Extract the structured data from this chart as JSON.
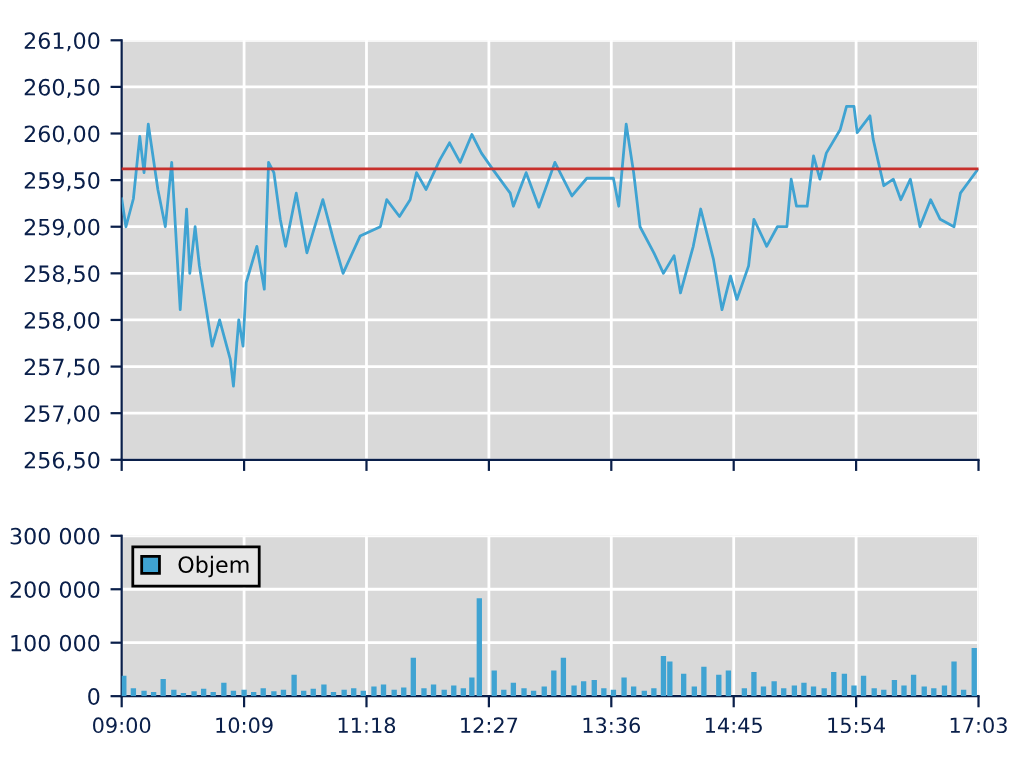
{
  "chart_data": [
    {
      "type": "line",
      "grid": true,
      "tick_labels": "y",
      "xlim": [
        9.0,
        17.05
      ],
      "xticks": [
        {
          "value": 9.0,
          "label": null
        },
        {
          "value": 10.15,
          "label": null
        },
        {
          "value": 11.3,
          "label": null
        },
        {
          "value": 12.45,
          "label": null
        },
        {
          "value": 13.6,
          "label": null
        },
        {
          "value": 14.75,
          "label": null
        },
        {
          "value": 15.9,
          "label": null
        },
        {
          "value": 17.05,
          "label": null
        }
      ],
      "ylim": [
        256.5,
        261.0
      ],
      "yticks": [
        {
          "value": 256.5,
          "label": "256,50"
        },
        {
          "value": 257.0,
          "label": "257,00"
        },
        {
          "value": 257.5,
          "label": "257,50"
        },
        {
          "value": 258.0,
          "label": "258,00"
        },
        {
          "value": 258.5,
          "label": "258,50"
        },
        {
          "value": 259.0,
          "label": "259,00"
        },
        {
          "value": 259.5,
          "label": "259,50"
        },
        {
          "value": 260.0,
          "label": "260,00"
        },
        {
          "value": 260.5,
          "label": "260,50"
        },
        {
          "value": 261.0,
          "label": "261,00"
        }
      ],
      "ref_lines": [
        {
          "axis": "y",
          "value": 259.62,
          "color": "#c8302c"
        }
      ],
      "series": [
        {
          "color": "#3fa3d2",
          "x": [
            9.0,
            9.04,
            9.11,
            9.17,
            9.21,
            9.25,
            9.34,
            9.41,
            9.47,
            9.55,
            9.61,
            9.64,
            9.69,
            9.73,
            9.85,
            9.92,
            10.02,
            10.05,
            10.1,
            10.14,
            10.17,
            10.27,
            10.34,
            10.38,
            10.43,
            10.49,
            10.54,
            10.64,
            10.74,
            10.89,
            10.99,
            11.08,
            11.24,
            11.43,
            11.49,
            11.61,
            11.71,
            11.77,
            11.86,
            11.99,
            12.08,
            12.18,
            12.29,
            12.38,
            12.49,
            12.65,
            12.68,
            12.8,
            12.92,
            13.07,
            13.23,
            13.37,
            13.62,
            13.67,
            13.74,
            13.81,
            13.87,
            14.0,
            14.09,
            14.19,
            14.25,
            14.37,
            14.44,
            14.56,
            14.64,
            14.72,
            14.78,
            14.89,
            14.94,
            15.06,
            15.16,
            15.25,
            15.29,
            15.34,
            15.44,
            15.5,
            15.56,
            15.62,
            15.75,
            15.81,
            15.88,
            15.91,
            16.03,
            16.06,
            16.16,
            16.25,
            16.32,
            16.41,
            16.5,
            16.6,
            16.69,
            16.82,
            16.88,
            17.04
          ],
          "values": [
            259.3,
            259.0,
            259.3,
            259.97,
            259.58,
            260.1,
            259.4,
            259.0,
            259.69,
            258.11,
            259.19,
            258.5,
            259.0,
            258.58,
            257.72,
            258.0,
            257.58,
            257.29,
            258.0,
            257.72,
            258.4,
            258.79,
            258.33,
            259.69,
            259.58,
            259.08,
            258.79,
            259.36,
            258.72,
            259.29,
            258.86,
            258.5,
            258.9,
            259.0,
            259.29,
            259.11,
            259.29,
            259.58,
            259.4,
            259.72,
            259.9,
            259.69,
            259.99,
            259.79,
            259.61,
            259.36,
            259.22,
            259.58,
            259.21,
            259.69,
            259.33,
            259.52,
            259.52,
            259.22,
            260.1,
            259.58,
            259.0,
            258.72,
            258.5,
            258.69,
            258.29,
            258.79,
            259.19,
            258.65,
            258.11,
            258.47,
            258.22,
            258.58,
            259.08,
            258.79,
            259.0,
            259.0,
            259.51,
            259.22,
            259.22,
            259.76,
            259.51,
            259.79,
            260.04,
            260.29,
            260.29,
            260.01,
            260.19,
            259.94,
            259.44,
            259.51,
            259.29,
            259.51,
            259.0,
            259.29,
            259.08,
            259.0,
            259.36,
            259.61
          ]
        }
      ]
    },
    {
      "type": "bar",
      "grid": true,
      "legend": "top left",
      "xlim": [
        9.0,
        17.05
      ],
      "xticks": [
        {
          "value": 9.0,
          "label": "09:00"
        },
        {
          "value": 10.15,
          "label": "10:09"
        },
        {
          "value": 11.3,
          "label": "11:18"
        },
        {
          "value": 12.45,
          "label": "12:27"
        },
        {
          "value": 13.6,
          "label": "13:36"
        },
        {
          "value": 14.75,
          "label": "14:45"
        },
        {
          "value": 15.9,
          "label": "15:54"
        },
        {
          "value": 17.05,
          "label": "17:03"
        }
      ],
      "ylim": [
        0,
        300000
      ],
      "yticks": [
        {
          "value": 0,
          "label": "0"
        },
        {
          "value": 100000,
          "label": "100 000"
        },
        {
          "value": 200000,
          "label": "200 000"
        },
        {
          "value": 300000,
          "label": "300 000"
        }
      ],
      "series": [
        {
          "name": "Objem",
          "color": "#3fa3d2",
          "x": [
            9.02,
            9.11,
            9.21,
            9.3,
            9.39,
            9.49,
            9.58,
            9.68,
            9.77,
            9.86,
            9.96,
            10.05,
            10.15,
            10.24,
            10.33,
            10.43,
            10.52,
            10.62,
            10.71,
            10.8,
            10.9,
            10.99,
            11.09,
            11.18,
            11.27,
            11.37,
            11.46,
            11.56,
            11.65,
            11.74,
            11.84,
            11.93,
            12.03,
            12.12,
            12.21,
            12.29,
            12.36,
            12.5,
            12.59,
            12.68,
            12.78,
            12.87,
            12.97,
            13.06,
            13.15,
            13.25,
            13.34,
            13.44,
            13.53,
            13.62,
            13.72,
            13.81,
            13.91,
            14.0,
            14.09,
            14.15,
            14.28,
            14.38,
            14.47,
            14.61,
            14.7,
            14.85,
            14.94,
            15.03,
            15.13,
            15.22,
            15.32,
            15.41,
            15.5,
            15.6,
            15.69,
            15.79,
            15.88,
            15.97,
            16.07,
            16.16,
            16.26,
            16.35,
            16.44,
            16.54,
            16.63,
            16.73,
            16.82,
            16.91,
            17.01
          ],
          "values": [
            38000,
            15000,
            10000,
            8000,
            32000,
            12000,
            6000,
            9000,
            14000,
            8000,
            25000,
            10000,
            12000,
            8000,
            15000,
            9000,
            12000,
            40000,
            10000,
            14000,
            22000,
            8000,
            12000,
            15000,
            10000,
            18000,
            22000,
            12000,
            16000,
            72000,
            15000,
            22000,
            12000,
            20000,
            15000,
            35000,
            183000,
            48000,
            12000,
            25000,
            15000,
            10000,
            18000,
            48000,
            72000,
            20000,
            28000,
            30000,
            15000,
            12000,
            35000,
            18000,
            10000,
            15000,
            75000,
            65000,
            42000,
            18000,
            55000,
            40000,
            48000,
            15000,
            45000,
            18000,
            28000,
            15000,
            20000,
            25000,
            18000,
            15000,
            45000,
            42000,
            20000,
            38000,
            15000,
            12000,
            30000,
            20000,
            40000,
            18000,
            15000,
            20000,
            65000,
            12000,
            90000
          ]
        }
      ]
    }
  ]
}
